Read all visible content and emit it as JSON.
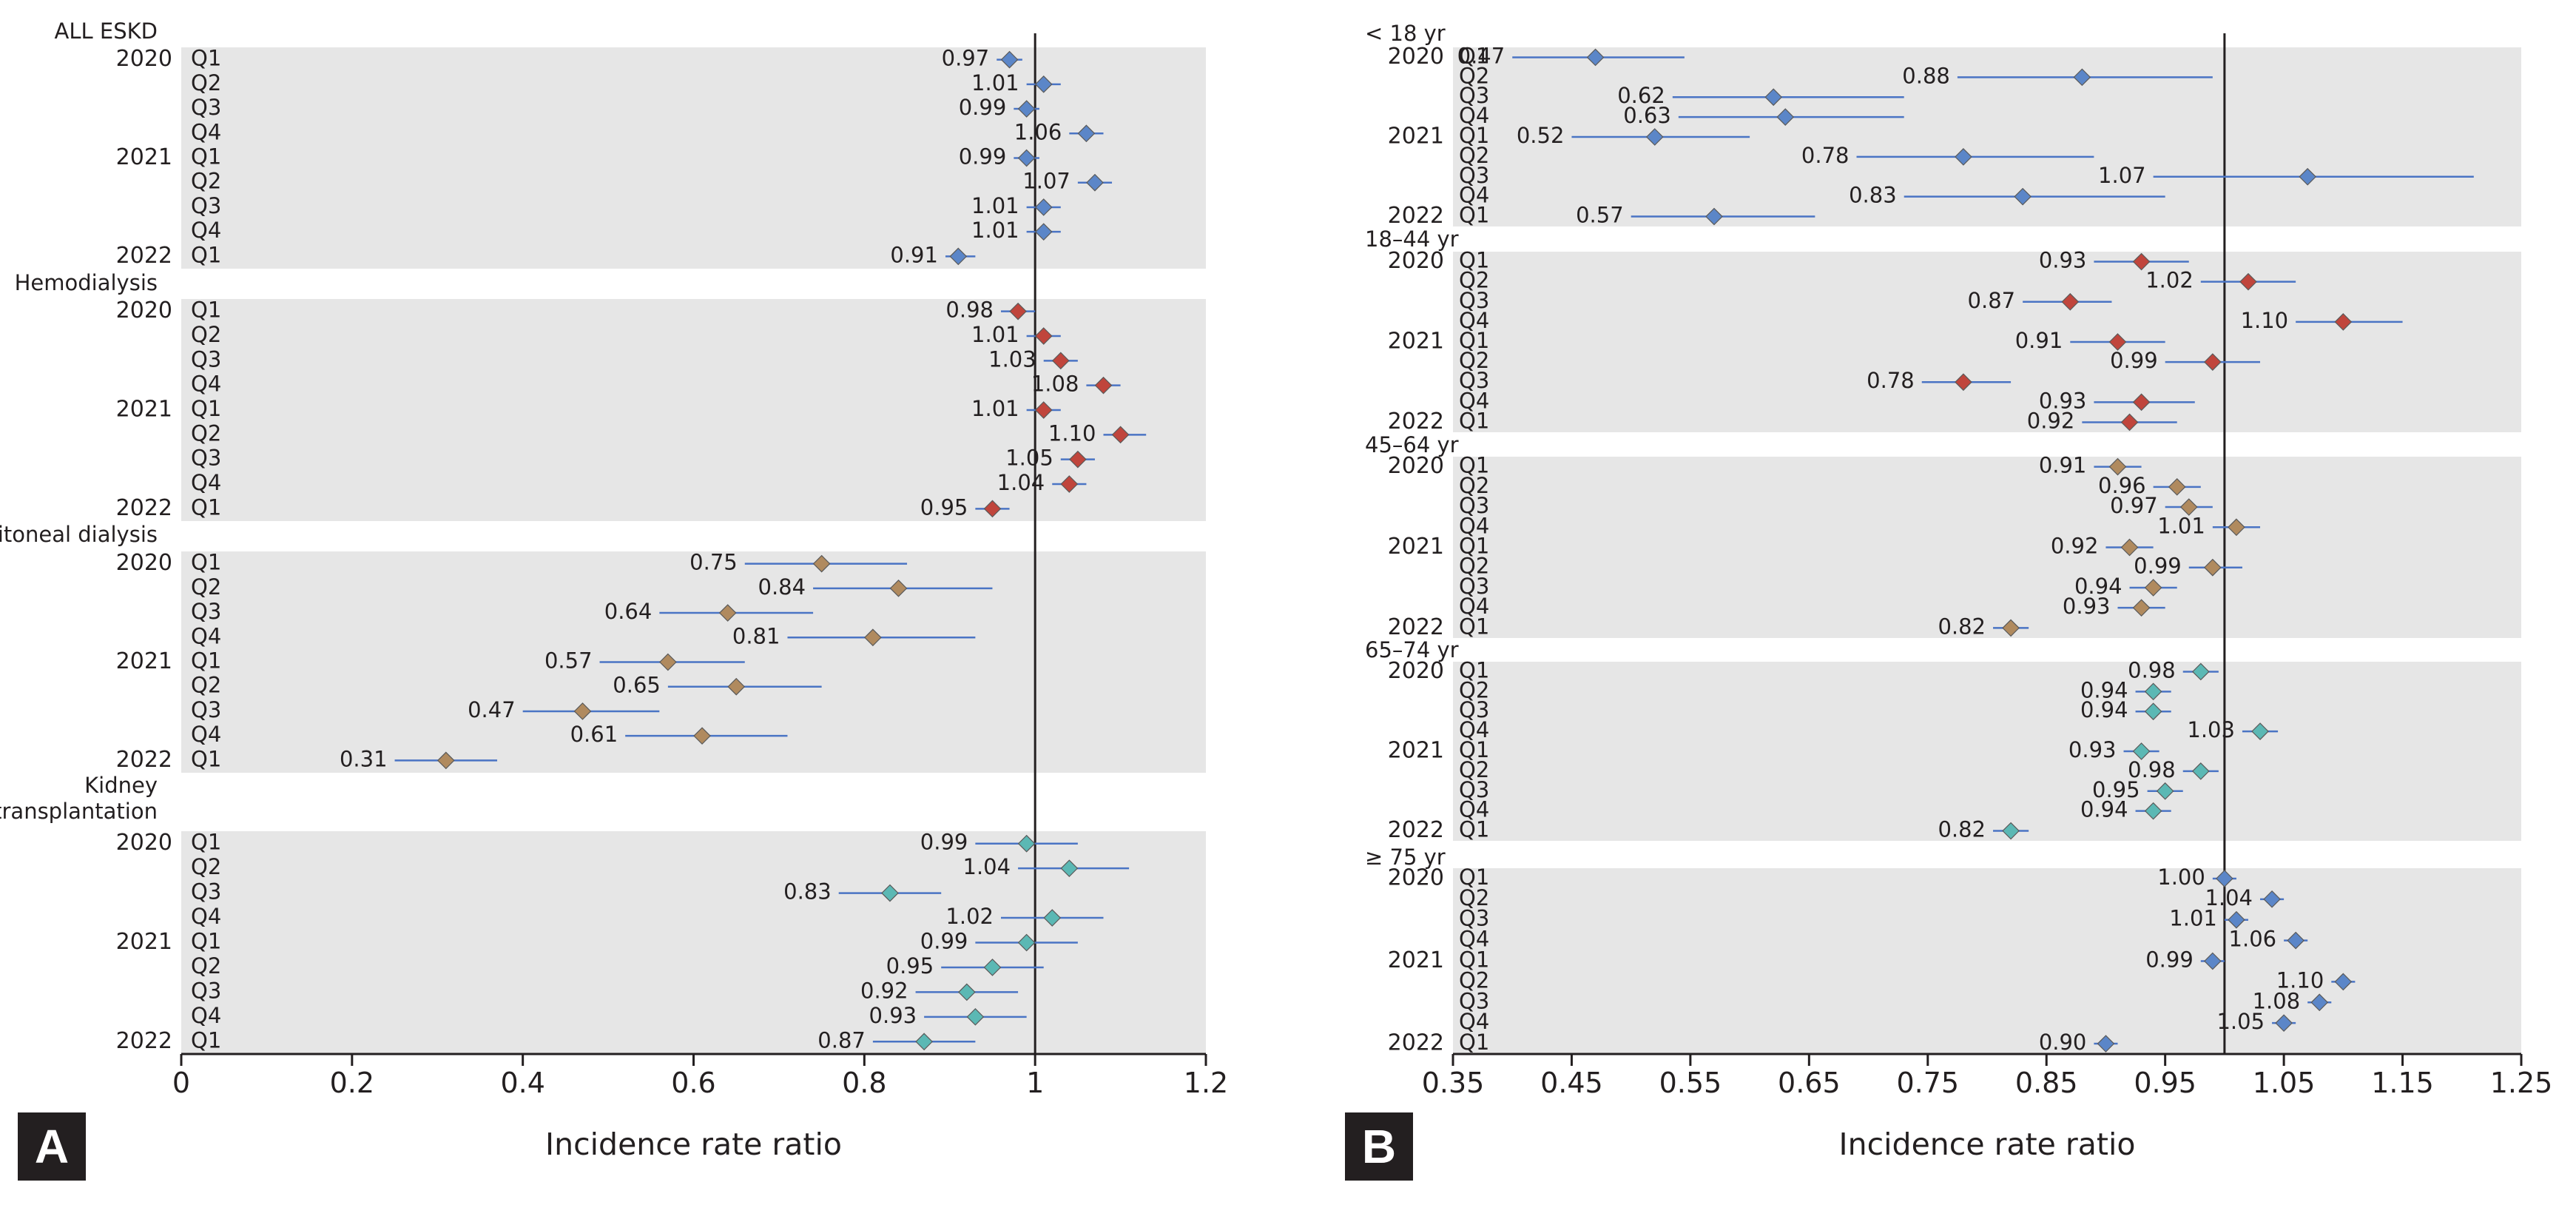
{
  "chart_data": [
    {
      "panel": "A",
      "type": "forest",
      "xlabel": "Incidence rate ratio",
      "xlim": [
        0,
        1.2
      ],
      "xticks": [
        "0",
        "0.2",
        "0.4",
        "0.6",
        "0.8",
        "1",
        "1.2"
      ],
      "xtick_values": [
        0,
        0.2,
        0.4,
        0.6,
        0.8,
        1.0,
        1.2
      ],
      "reference_line": 1,
      "groups": [
        {
          "name": "ALL ESKD",
          "marker_color": "#5b86c8",
          "rows": [
            {
              "year": "2020",
              "quarter": "Q1",
              "irr": 0.97,
              "label": "0.97",
              "lo": 0.955,
              "hi": 0.985
            },
            {
              "year": "",
              "quarter": "Q2",
              "irr": 1.01,
              "label": "1.01",
              "lo": 0.99,
              "hi": 1.03
            },
            {
              "year": "",
              "quarter": "Q3",
              "irr": 0.99,
              "label": "0.99",
              "lo": 0.975,
              "hi": 1.005
            },
            {
              "year": "",
              "quarter": "Q4",
              "irr": 1.06,
              "label": "1.06",
              "lo": 1.04,
              "hi": 1.08
            },
            {
              "year": "2021",
              "quarter": "Q1",
              "irr": 0.99,
              "label": "0.99",
              "lo": 0.975,
              "hi": 1.005
            },
            {
              "year": "",
              "quarter": "Q2",
              "irr": 1.07,
              "label": "1.07",
              "lo": 1.05,
              "hi": 1.09
            },
            {
              "year": "",
              "quarter": "Q3",
              "irr": 1.01,
              "label": "1.01",
              "lo": 0.99,
              "hi": 1.03
            },
            {
              "year": "",
              "quarter": "Q4",
              "irr": 1.01,
              "label": "1.01",
              "lo": 0.99,
              "hi": 1.03
            },
            {
              "year": "2022",
              "quarter": "Q1",
              "irr": 0.91,
              "label": "0.91",
              "lo": 0.895,
              "hi": 0.93
            }
          ]
        },
        {
          "name": "Hemodialysis",
          "marker_color": "#c0453c",
          "rows": [
            {
              "year": "2020",
              "quarter": "Q1",
              "irr": 0.98,
              "label": "0.98",
              "lo": 0.96,
              "hi": 1.0
            },
            {
              "year": "",
              "quarter": "Q2",
              "irr": 1.01,
              "label": "1.01",
              "lo": 0.99,
              "hi": 1.03
            },
            {
              "year": "",
              "quarter": "Q3",
              "irr": 1.03,
              "label": "1.03",
              "lo": 1.01,
              "hi": 1.05
            },
            {
              "year": "",
              "quarter": "Q4",
              "irr": 1.08,
              "label": "1.08",
              "lo": 1.06,
              "hi": 1.1
            },
            {
              "year": "2021",
              "quarter": "Q1",
              "irr": 1.01,
              "label": "1.01",
              "lo": 0.99,
              "hi": 1.03
            },
            {
              "year": "",
              "quarter": "Q2",
              "irr": 1.1,
              "label": "1.10",
              "lo": 1.08,
              "hi": 1.13
            },
            {
              "year": "",
              "quarter": "Q3",
              "irr": 1.05,
              "label": "1.05",
              "lo": 1.03,
              "hi": 1.07
            },
            {
              "year": "",
              "quarter": "Q4",
              "irr": 1.04,
              "label": "1.04",
              "lo": 1.02,
              "hi": 1.06
            },
            {
              "year": "2022",
              "quarter": "Q1",
              "irr": 0.95,
              "label": "0.95",
              "lo": 0.93,
              "hi": 0.97
            }
          ]
        },
        {
          "name": "Peritoneal dialysis",
          "marker_color": "#b08a5e",
          "rows": [
            {
              "year": "2020",
              "quarter": "Q1",
              "irr": 0.75,
              "label": "0.75",
              "lo": 0.66,
              "hi": 0.85
            },
            {
              "year": "",
              "quarter": "Q2",
              "irr": 0.84,
              "label": "0.84",
              "lo": 0.74,
              "hi": 0.95
            },
            {
              "year": "",
              "quarter": "Q3",
              "irr": 0.64,
              "label": "0.64",
              "lo": 0.56,
              "hi": 0.74
            },
            {
              "year": "",
              "quarter": "Q4",
              "irr": 0.81,
              "label": "0.81",
              "lo": 0.71,
              "hi": 0.93
            },
            {
              "year": "2021",
              "quarter": "Q1",
              "irr": 0.57,
              "label": "0.57",
              "lo": 0.49,
              "hi": 0.66
            },
            {
              "year": "",
              "quarter": "Q2",
              "irr": 0.65,
              "label": "0.65",
              "lo": 0.57,
              "hi": 0.75
            },
            {
              "year": "",
              "quarter": "Q3",
              "irr": 0.47,
              "label": "0.47",
              "lo": 0.4,
              "hi": 0.56
            },
            {
              "year": "",
              "quarter": "Q4",
              "irr": 0.61,
              "label": "0.61",
              "lo": 0.52,
              "hi": 0.71
            },
            {
              "year": "2022",
              "quarter": "Q1",
              "irr": 0.31,
              "label": "0.31",
              "lo": 0.25,
              "hi": 0.37
            }
          ]
        },
        {
          "name": "Kidney\ntransplantation",
          "marker_color": "#5bb8b4",
          "rows": [
            {
              "year": "2020",
              "quarter": "Q1",
              "irr": 0.99,
              "label": "0.99",
              "lo": 0.93,
              "hi": 1.05
            },
            {
              "year": "",
              "quarter": "Q2",
              "irr": 1.04,
              "label": "1.04",
              "lo": 0.98,
              "hi": 1.11
            },
            {
              "year": "",
              "quarter": "Q3",
              "irr": 0.83,
              "label": "0.83",
              "lo": 0.77,
              "hi": 0.89
            },
            {
              "year": "",
              "quarter": "Q4",
              "irr": 1.02,
              "label": "1.02",
              "lo": 0.96,
              "hi": 1.08
            },
            {
              "year": "2021",
              "quarter": "Q1",
              "irr": 0.99,
              "label": "0.99",
              "lo": 0.93,
              "hi": 1.05
            },
            {
              "year": "",
              "quarter": "Q2",
              "irr": 0.95,
              "label": "0.95",
              "lo": 0.89,
              "hi": 1.01
            },
            {
              "year": "",
              "quarter": "Q3",
              "irr": 0.92,
              "label": "0.92",
              "lo": 0.86,
              "hi": 0.98
            },
            {
              "year": "",
              "quarter": "Q4",
              "irr": 0.93,
              "label": "0.93",
              "lo": 0.87,
              "hi": 0.99
            },
            {
              "year": "2022",
              "quarter": "Q1",
              "irr": 0.87,
              "label": "0.87",
              "lo": 0.81,
              "hi": 0.93
            }
          ]
        }
      ]
    },
    {
      "panel": "B",
      "type": "forest",
      "xlabel": "Incidence rate ratio",
      "xlim": [
        0.35,
        1.25
      ],
      "xticks": [
        "0.35",
        "0.45",
        "0.55",
        "0.65",
        "0.75",
        "0.85",
        "0.95",
        "1.05",
        "1.15",
        "1.25"
      ],
      "xtick_values": [
        0.35,
        0.45,
        0.55,
        0.65,
        0.75,
        0.85,
        0.95,
        1.05,
        1.15,
        1.25
      ],
      "reference_line": 1,
      "groups": [
        {
          "name": "< 18 yr",
          "marker_color": "#5b86c8",
          "rows": [
            {
              "year": "2020",
              "quarter": "Q1",
              "irr": 0.47,
              "label": "0.47",
              "lo": 0.4,
              "hi": 0.545
            },
            {
              "year": "",
              "quarter": "Q2",
              "irr": 0.88,
              "label": "0.88",
              "lo": 0.775,
              "hi": 0.99
            },
            {
              "year": "",
              "quarter": "Q3",
              "irr": 0.62,
              "label": "0.62",
              "lo": 0.535,
              "hi": 0.73
            },
            {
              "year": "",
              "quarter": "Q4",
              "irr": 0.63,
              "label": "0.63",
              "lo": 0.54,
              "hi": 0.73
            },
            {
              "year": "2021",
              "quarter": "Q1",
              "irr": 0.52,
              "label": "0.52",
              "lo": 0.45,
              "hi": 0.6
            },
            {
              "year": "",
              "quarter": "Q2",
              "irr": 0.78,
              "label": "0.78",
              "lo": 0.69,
              "hi": 0.89
            },
            {
              "year": "",
              "quarter": "Q3",
              "irr": 1.07,
              "label": "1.07",
              "lo": 0.94,
              "hi": 1.21
            },
            {
              "year": "",
              "quarter": "Q4",
              "irr": 0.83,
              "label": "0.83",
              "lo": 0.73,
              "hi": 0.95
            },
            {
              "year": "2022",
              "quarter": "Q1",
              "irr": 0.57,
              "label": "0.57",
              "lo": 0.5,
              "hi": 0.655
            }
          ]
        },
        {
          "name": "18–44 yr",
          "marker_color": "#c0453c",
          "rows": [
            {
              "year": "2020",
              "quarter": "Q1",
              "irr": 0.93,
              "label": "0.93",
              "lo": 0.89,
              "hi": 0.97
            },
            {
              "year": "",
              "quarter": "Q2",
              "irr": 1.02,
              "label": "1.02",
              "lo": 0.98,
              "hi": 1.06
            },
            {
              "year": "",
              "quarter": "Q3",
              "irr": 0.87,
              "label": "0.87",
              "lo": 0.83,
              "hi": 0.905
            },
            {
              "year": "",
              "quarter": "Q4",
              "irr": 1.1,
              "label": "1.10",
              "lo": 1.06,
              "hi": 1.15
            },
            {
              "year": "2021",
              "quarter": "Q1",
              "irr": 0.91,
              "label": "0.91",
              "lo": 0.87,
              "hi": 0.95
            },
            {
              "year": "",
              "quarter": "Q2",
              "irr": 0.99,
              "label": "0.99",
              "lo": 0.95,
              "hi": 1.03
            },
            {
              "year": "",
              "quarter": "Q3",
              "irr": 0.78,
              "label": "0.78",
              "lo": 0.745,
              "hi": 0.82
            },
            {
              "year": "",
              "quarter": "Q4",
              "irr": 0.93,
              "label": "0.93",
              "lo": 0.89,
              "hi": 0.975
            },
            {
              "year": "2022",
              "quarter": "Q1",
              "irr": 0.92,
              "label": "0.92",
              "lo": 0.88,
              "hi": 0.96
            }
          ]
        },
        {
          "name": "45–64 yr",
          "marker_color": "#b08a5e",
          "rows": [
            {
              "year": "2020",
              "quarter": "Q1",
              "irr": 0.91,
              "label": "0.91",
              "lo": 0.89,
              "hi": 0.93
            },
            {
              "year": "",
              "quarter": "Q2",
              "irr": 0.96,
              "label": "0.96",
              "lo": 0.94,
              "hi": 0.98
            },
            {
              "year": "",
              "quarter": "Q3",
              "irr": 0.97,
              "label": "0.97",
              "lo": 0.95,
              "hi": 0.99
            },
            {
              "year": "",
              "quarter": "Q4",
              "irr": 1.01,
              "label": "1.01",
              "lo": 0.99,
              "hi": 1.03
            },
            {
              "year": "2021",
              "quarter": "Q1",
              "irr": 0.92,
              "label": "0.92",
              "lo": 0.9,
              "hi": 0.94
            },
            {
              "year": "",
              "quarter": "Q2",
              "irr": 0.99,
              "label": "0.99",
              "lo": 0.97,
              "hi": 1.015
            },
            {
              "year": "",
              "quarter": "Q3",
              "irr": 0.94,
              "label": "0.94",
              "lo": 0.92,
              "hi": 0.96
            },
            {
              "year": "",
              "quarter": "Q4",
              "irr": 0.93,
              "label": "0.93",
              "lo": 0.91,
              "hi": 0.95
            },
            {
              "year": "2022",
              "quarter": "Q1",
              "irr": 0.82,
              "label": "0.82",
              "lo": 0.805,
              "hi": 0.835
            }
          ]
        },
        {
          "name": "65–74 yr",
          "marker_color": "#5bb8b4",
          "rows": [
            {
              "year": "2020",
              "quarter": "Q1",
              "irr": 0.98,
              "label": "0.98",
              "lo": 0.965,
              "hi": 0.995
            },
            {
              "year": "",
              "quarter": "Q2",
              "irr": 0.94,
              "label": "0.94",
              "lo": 0.925,
              "hi": 0.955
            },
            {
              "year": "",
              "quarter": "Q3",
              "irr": 0.94,
              "label": "0.94",
              "lo": 0.925,
              "hi": 0.955
            },
            {
              "year": "",
              "quarter": "Q4",
              "irr": 1.03,
              "label": "1.03",
              "lo": 1.015,
              "hi": 1.045
            },
            {
              "year": "2021",
              "quarter": "Q1",
              "irr": 0.93,
              "label": "0.93",
              "lo": 0.915,
              "hi": 0.945
            },
            {
              "year": "",
              "quarter": "Q2",
              "irr": 0.98,
              "label": "0.98",
              "lo": 0.965,
              "hi": 0.995
            },
            {
              "year": "",
              "quarter": "Q3",
              "irr": 0.95,
              "label": "0.95",
              "lo": 0.935,
              "hi": 0.965
            },
            {
              "year": "",
              "quarter": "Q4",
              "irr": 0.94,
              "label": "0.94",
              "lo": 0.925,
              "hi": 0.955
            },
            {
              "year": "2022",
              "quarter": "Q1",
              "irr": 0.82,
              "label": "0.82",
              "lo": 0.805,
              "hi": 0.835
            }
          ]
        },
        {
          "name": "≥ 75 yr",
          "marker_color": "#5b86c8",
          "rows": [
            {
              "year": "2020",
              "quarter": "Q1",
              "irr": 1.0,
              "label": "1.00",
              "lo": 0.99,
              "hi": 1.01
            },
            {
              "year": "",
              "quarter": "Q2",
              "irr": 1.04,
              "label": "1.04",
              "lo": 1.03,
              "hi": 1.05
            },
            {
              "year": "",
              "quarter": "Q3",
              "irr": 1.01,
              "label": "1.01",
              "lo": 1.0,
              "hi": 1.02
            },
            {
              "year": "",
              "quarter": "Q4",
              "irr": 1.06,
              "label": "1.06",
              "lo": 1.05,
              "hi": 1.07
            },
            {
              "year": "2021",
              "quarter": "Q1",
              "irr": 0.99,
              "label": "0.99",
              "lo": 0.98,
              "hi": 1.0
            },
            {
              "year": "",
              "quarter": "Q2",
              "irr": 1.1,
              "label": "1.10",
              "lo": 1.09,
              "hi": 1.11
            },
            {
              "year": "",
              "quarter": "Q3",
              "irr": 1.08,
              "label": "1.08",
              "lo": 1.07,
              "hi": 1.09
            },
            {
              "year": "",
              "quarter": "Q4",
              "irr": 1.05,
              "label": "1.05",
              "lo": 1.04,
              "hi": 1.06
            },
            {
              "year": "2022",
              "quarter": "Q1",
              "irr": 0.9,
              "label": "0.90",
              "lo": 0.89,
              "hi": 0.91
            }
          ]
        }
      ]
    }
  ],
  "panels": [
    {
      "label": "A"
    },
    {
      "label": "B"
    }
  ]
}
